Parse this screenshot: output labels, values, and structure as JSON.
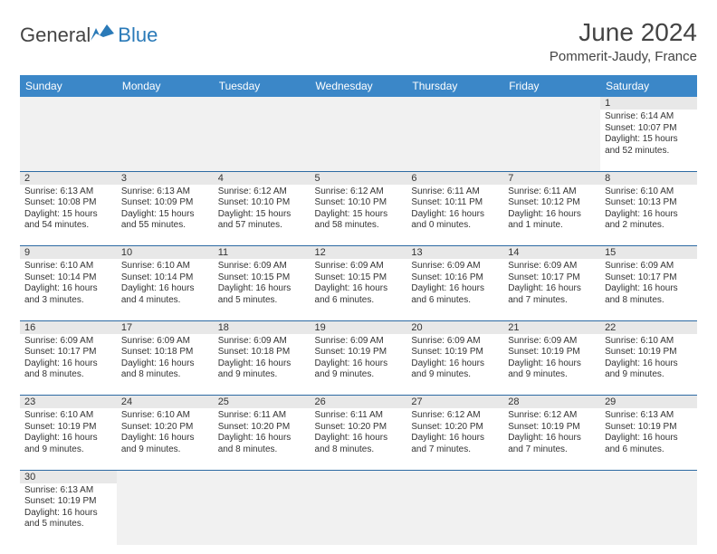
{
  "logo": {
    "general": "General",
    "blue": "Blue",
    "icon_color": "#2a7ab8"
  },
  "header": {
    "title": "June 2024",
    "location": "Pommerit-Jaudy, France"
  },
  "theme": {
    "header_row_bg": "#3b87c8",
    "header_row_text": "#ffffff",
    "daynum_bg": "#e8e8e8",
    "empty_bg": "#f1f1f1",
    "cell_border": "#2d6aa3",
    "text_color": "#333333"
  },
  "weekdays": [
    "Sunday",
    "Monday",
    "Tuesday",
    "Wednesday",
    "Thursday",
    "Friday",
    "Saturday"
  ],
  "weeks": [
    {
      "daynums": [
        "",
        "",
        "",
        "",
        "",
        "",
        "1"
      ],
      "cells": [
        null,
        null,
        null,
        null,
        null,
        null,
        {
          "sunrise": "Sunrise: 6:14 AM",
          "sunset": "Sunset: 10:07 PM",
          "daylight1": "Daylight: 15 hours",
          "daylight2": "and 52 minutes."
        }
      ]
    },
    {
      "daynums": [
        "2",
        "3",
        "4",
        "5",
        "6",
        "7",
        "8"
      ],
      "cells": [
        {
          "sunrise": "Sunrise: 6:13 AM",
          "sunset": "Sunset: 10:08 PM",
          "daylight1": "Daylight: 15 hours",
          "daylight2": "and 54 minutes."
        },
        {
          "sunrise": "Sunrise: 6:13 AM",
          "sunset": "Sunset: 10:09 PM",
          "daylight1": "Daylight: 15 hours",
          "daylight2": "and 55 minutes."
        },
        {
          "sunrise": "Sunrise: 6:12 AM",
          "sunset": "Sunset: 10:10 PM",
          "daylight1": "Daylight: 15 hours",
          "daylight2": "and 57 minutes."
        },
        {
          "sunrise": "Sunrise: 6:12 AM",
          "sunset": "Sunset: 10:10 PM",
          "daylight1": "Daylight: 15 hours",
          "daylight2": "and 58 minutes."
        },
        {
          "sunrise": "Sunrise: 6:11 AM",
          "sunset": "Sunset: 10:11 PM",
          "daylight1": "Daylight: 16 hours",
          "daylight2": "and 0 minutes."
        },
        {
          "sunrise": "Sunrise: 6:11 AM",
          "sunset": "Sunset: 10:12 PM",
          "daylight1": "Daylight: 16 hours",
          "daylight2": "and 1 minute."
        },
        {
          "sunrise": "Sunrise: 6:10 AM",
          "sunset": "Sunset: 10:13 PM",
          "daylight1": "Daylight: 16 hours",
          "daylight2": "and 2 minutes."
        }
      ]
    },
    {
      "daynums": [
        "9",
        "10",
        "11",
        "12",
        "13",
        "14",
        "15"
      ],
      "cells": [
        {
          "sunrise": "Sunrise: 6:10 AM",
          "sunset": "Sunset: 10:14 PM",
          "daylight1": "Daylight: 16 hours",
          "daylight2": "and 3 minutes."
        },
        {
          "sunrise": "Sunrise: 6:10 AM",
          "sunset": "Sunset: 10:14 PM",
          "daylight1": "Daylight: 16 hours",
          "daylight2": "and 4 minutes."
        },
        {
          "sunrise": "Sunrise: 6:09 AM",
          "sunset": "Sunset: 10:15 PM",
          "daylight1": "Daylight: 16 hours",
          "daylight2": "and 5 minutes."
        },
        {
          "sunrise": "Sunrise: 6:09 AM",
          "sunset": "Sunset: 10:15 PM",
          "daylight1": "Daylight: 16 hours",
          "daylight2": "and 6 minutes."
        },
        {
          "sunrise": "Sunrise: 6:09 AM",
          "sunset": "Sunset: 10:16 PM",
          "daylight1": "Daylight: 16 hours",
          "daylight2": "and 6 minutes."
        },
        {
          "sunrise": "Sunrise: 6:09 AM",
          "sunset": "Sunset: 10:17 PM",
          "daylight1": "Daylight: 16 hours",
          "daylight2": "and 7 minutes."
        },
        {
          "sunrise": "Sunrise: 6:09 AM",
          "sunset": "Sunset: 10:17 PM",
          "daylight1": "Daylight: 16 hours",
          "daylight2": "and 8 minutes."
        }
      ]
    },
    {
      "daynums": [
        "16",
        "17",
        "18",
        "19",
        "20",
        "21",
        "22"
      ],
      "cells": [
        {
          "sunrise": "Sunrise: 6:09 AM",
          "sunset": "Sunset: 10:17 PM",
          "daylight1": "Daylight: 16 hours",
          "daylight2": "and 8 minutes."
        },
        {
          "sunrise": "Sunrise: 6:09 AM",
          "sunset": "Sunset: 10:18 PM",
          "daylight1": "Daylight: 16 hours",
          "daylight2": "and 8 minutes."
        },
        {
          "sunrise": "Sunrise: 6:09 AM",
          "sunset": "Sunset: 10:18 PM",
          "daylight1": "Daylight: 16 hours",
          "daylight2": "and 9 minutes."
        },
        {
          "sunrise": "Sunrise: 6:09 AM",
          "sunset": "Sunset: 10:19 PM",
          "daylight1": "Daylight: 16 hours",
          "daylight2": "and 9 minutes."
        },
        {
          "sunrise": "Sunrise: 6:09 AM",
          "sunset": "Sunset: 10:19 PM",
          "daylight1": "Daylight: 16 hours",
          "daylight2": "and 9 minutes."
        },
        {
          "sunrise": "Sunrise: 6:09 AM",
          "sunset": "Sunset: 10:19 PM",
          "daylight1": "Daylight: 16 hours",
          "daylight2": "and 9 minutes."
        },
        {
          "sunrise": "Sunrise: 6:10 AM",
          "sunset": "Sunset: 10:19 PM",
          "daylight1": "Daylight: 16 hours",
          "daylight2": "and 9 minutes."
        }
      ]
    },
    {
      "daynums": [
        "23",
        "24",
        "25",
        "26",
        "27",
        "28",
        "29"
      ],
      "cells": [
        {
          "sunrise": "Sunrise: 6:10 AM",
          "sunset": "Sunset: 10:19 PM",
          "daylight1": "Daylight: 16 hours",
          "daylight2": "and 9 minutes."
        },
        {
          "sunrise": "Sunrise: 6:10 AM",
          "sunset": "Sunset: 10:20 PM",
          "daylight1": "Daylight: 16 hours",
          "daylight2": "and 9 minutes."
        },
        {
          "sunrise": "Sunrise: 6:11 AM",
          "sunset": "Sunset: 10:20 PM",
          "daylight1": "Daylight: 16 hours",
          "daylight2": "and 8 minutes."
        },
        {
          "sunrise": "Sunrise: 6:11 AM",
          "sunset": "Sunset: 10:20 PM",
          "daylight1": "Daylight: 16 hours",
          "daylight2": "and 8 minutes."
        },
        {
          "sunrise": "Sunrise: 6:12 AM",
          "sunset": "Sunset: 10:20 PM",
          "daylight1": "Daylight: 16 hours",
          "daylight2": "and 7 minutes."
        },
        {
          "sunrise": "Sunrise: 6:12 AM",
          "sunset": "Sunset: 10:19 PM",
          "daylight1": "Daylight: 16 hours",
          "daylight2": "and 7 minutes."
        },
        {
          "sunrise": "Sunrise: 6:13 AM",
          "sunset": "Sunset: 10:19 PM",
          "daylight1": "Daylight: 16 hours",
          "daylight2": "and 6 minutes."
        }
      ]
    },
    {
      "daynums": [
        "30",
        "",
        "",
        "",
        "",
        "",
        ""
      ],
      "cells": [
        {
          "sunrise": "Sunrise: 6:13 AM",
          "sunset": "Sunset: 10:19 PM",
          "daylight1": "Daylight: 16 hours",
          "daylight2": "and 5 minutes."
        },
        null,
        null,
        null,
        null,
        null,
        null
      ]
    }
  ]
}
